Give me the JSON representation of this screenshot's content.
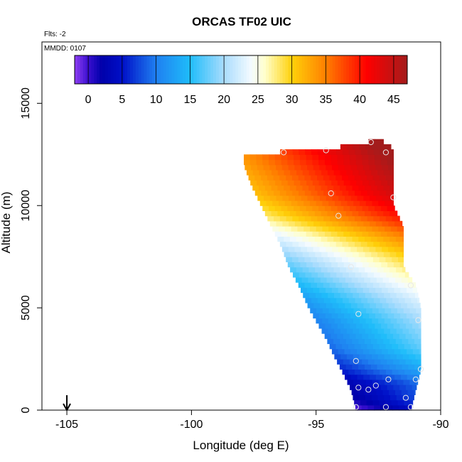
{
  "chart_data": {
    "type": "heatmap",
    "title": "ORCAS TF02 UIC",
    "annotations": {
      "flights": "Flts: -2",
      "date": "MMDD: 0107"
    },
    "xlabel": "Longitude (deg E)",
    "ylabel": "Altitude (m)",
    "xlim": [
      -106,
      -90
    ],
    "ylim": [
      0,
      18000
    ],
    "xticks": [
      -105,
      -100,
      -95,
      -90
    ],
    "xtick_labels": [
      "-105",
      "-100",
      "-95",
      "-90"
    ],
    "yticks": [
      0,
      5000,
      10000,
      15000
    ],
    "ytick_labels": [
      "0",
      "5000",
      "10000",
      "15000"
    ],
    "colorbar": {
      "range": [
        -2,
        47
      ],
      "ticks": [
        0,
        5,
        10,
        15,
        20,
        25,
        30,
        35,
        40,
        45
      ],
      "tick_labels": [
        "0",
        "5",
        "10",
        "15",
        "20",
        "25",
        "30",
        "35",
        "40",
        "45"
      ],
      "stops": [
        {
          "value": -2,
          "color": "#8f3ff2"
        },
        {
          "value": 0,
          "color": "#3a0fd0"
        },
        {
          "value": 2,
          "color": "#0000aa"
        },
        {
          "value": 5,
          "color": "#0010c8"
        },
        {
          "value": 10,
          "color": "#1f7ff0"
        },
        {
          "value": 15,
          "color": "#1fbdfa"
        },
        {
          "value": 20,
          "color": "#a9dcfd"
        },
        {
          "value": 24,
          "color": "#f4fbff"
        },
        {
          "value": 26,
          "color": "#ffffcc"
        },
        {
          "value": 30,
          "color": "#ffd10a"
        },
        {
          "value": 35,
          "color": "#ff7f00"
        },
        {
          "value": 41,
          "color": "#ff0000"
        },
        {
          "value": 47,
          "color": "#a31c1c"
        }
      ]
    },
    "marker": {
      "type": "arrow-down",
      "x": -105
    },
    "grid": false,
    "legend": "colorbar-top",
    "field": {
      "x_step": 0.25,
      "y_step": 250,
      "envelope": [
        {
          "y": 0,
          "x0": -93.4,
          "x1": -91.2
        },
        {
          "y": 1000,
          "x0": -93.6,
          "x1": -91.0
        },
        {
          "y": 2000,
          "x0": -94.0,
          "x1": -90.8
        },
        {
          "y": 2700,
          "x0": -94.3,
          "x1": -90.8
        },
        {
          "y": 3500,
          "x0": -94.6,
          "x1": -90.8
        },
        {
          "y": 5000,
          "x0": -95.3,
          "x1": -90.8
        },
        {
          "y": 6100,
          "x0": -95.7,
          "x1": -91.0
        },
        {
          "y": 7000,
          "x0": -96.1,
          "x1": -91.5
        },
        {
          "y": 8000,
          "x0": -96.4,
          "x1": -91.5
        },
        {
          "y": 9000,
          "x0": -96.8,
          "x1": -91.5
        },
        {
          "y": 10000,
          "x0": -97.2,
          "x1": -91.9
        },
        {
          "y": 11000,
          "x0": -97.6,
          "x1": -91.9
        },
        {
          "y": 12000,
          "x0": -97.9,
          "x1": -91.9
        },
        {
          "y": 12500,
          "x0": -97.9,
          "x1": -91.9
        },
        {
          "y": 12800,
          "x0": -94.4,
          "x1": -91.9
        },
        {
          "y": 13100,
          "x0": -92.9,
          "x1": -92.3
        }
      ],
      "profile": [
        {
          "y": 0,
          "v": -1.5
        },
        {
          "y": 500,
          "v": 1.5
        },
        {
          "y": 1300,
          "v": 3
        },
        {
          "y": 2000,
          "v": 7
        },
        {
          "y": 3000,
          "v": 11
        },
        {
          "y": 4500,
          "v": 14
        },
        {
          "y": 5500,
          "v": 17
        },
        {
          "y": 6500,
          "v": 21
        },
        {
          "y": 7500,
          "v": 25
        },
        {
          "y": 8500,
          "v": 30
        },
        {
          "y": 9500,
          "v": 36
        },
        {
          "y": 10500,
          "v": 40
        },
        {
          "y": 11500,
          "v": 42
        },
        {
          "y": 12500,
          "v": 44
        },
        {
          "y": 13200,
          "v": 46
        }
      ],
      "tilt_x": -93.5,
      "tilt_slope": 2.3
    },
    "observations": [
      {
        "x": -96.3,
        "y": 12600
      },
      {
        "x": -94.6,
        "y": 12700
      },
      {
        "x": -92.8,
        "y": 13100
      },
      {
        "x": -92.2,
        "y": 12600
      },
      {
        "x": -94.4,
        "y": 10600
      },
      {
        "x": -91.9,
        "y": 10400
      },
      {
        "x": -94.1,
        "y": 9500
      },
      {
        "x": -93.6,
        "y": 7000
      },
      {
        "x": -91.2,
        "y": 6100
      },
      {
        "x": -93.3,
        "y": 4700
      },
      {
        "x": -90.9,
        "y": 4400
      },
      {
        "x": -93.4,
        "y": 2400
      },
      {
        "x": -90.8,
        "y": 2000
      },
      {
        "x": -92.1,
        "y": 1500
      },
      {
        "x": -91.0,
        "y": 1500
      },
      {
        "x": -92.6,
        "y": 1200
      },
      {
        "x": -93.3,
        "y": 1100
      },
      {
        "x": -92.9,
        "y": 1000
      },
      {
        "x": -91.4,
        "y": 600
      },
      {
        "x": -93.4,
        "y": 150
      },
      {
        "x": -92.2,
        "y": 150
      },
      {
        "x": -91.2,
        "y": 150
      }
    ]
  }
}
